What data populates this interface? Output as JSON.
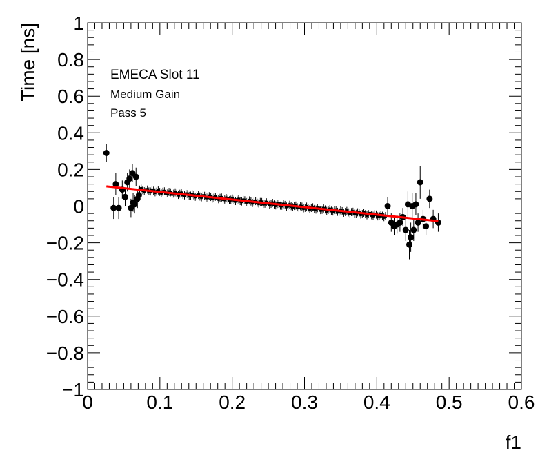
{
  "chart_data": {
    "type": "scatter",
    "title": "",
    "xlabel": "f1",
    "ylabel": "Time [ns]",
    "xlim": [
      0,
      0.6
    ],
    "ylim": [
      -1,
      1
    ],
    "xticks": [
      "0",
      "0.1",
      "0.2",
      "0.3",
      "0.4",
      "0.5",
      "0.6"
    ],
    "yticks": [
      "−1",
      "−0.8",
      "−0.6",
      "−0.4",
      "−0.2",
      "0",
      "0.2",
      "0.4",
      "0.6",
      "0.8",
      "1"
    ],
    "grid": false,
    "annotations": [
      "EMECA Slot 11",
      "Medium Gain",
      "Pass 5"
    ],
    "colors": {
      "points": "#000000",
      "fit": "#ff0000"
    },
    "fit_line": {
      "x": [
        0.026,
        0.485
      ],
      "y": [
        0.108,
        -0.082
      ]
    },
    "series": [
      {
        "x": [
          0.026,
          0.036,
          0.039,
          0.043,
          0.048,
          0.052,
          0.055,
          0.058,
          0.06,
          0.062,
          0.063,
          0.065,
          0.067,
          0.069,
          0.071
        ],
        "y": [
          0.29,
          -0.01,
          0.12,
          -0.01,
          0.09,
          0.05,
          0.13,
          0.15,
          -0.01,
          0.18,
          0.02,
          0.01,
          0.16,
          0.04,
          0.06
        ],
        "yerr": [
          0.05,
          0.06,
          0.06,
          0.06,
          0.05,
          0.05,
          0.05,
          0.05,
          0.05,
          0.05,
          0.05,
          0.05,
          0.05,
          0.05,
          0.05
        ]
      },
      {
        "x": [
          0.415,
          0.42,
          0.424,
          0.428,
          0.432,
          0.436,
          0.44,
          0.443,
          0.445,
          0.447,
          0.449,
          0.451,
          0.454,
          0.457,
          0.46,
          0.464,
          0.468,
          0.473,
          0.478,
          0.485
        ],
        "y": [
          0.0,
          -0.09,
          -0.11,
          -0.1,
          -0.09,
          -0.06,
          -0.13,
          0.01,
          -0.21,
          -0.17,
          0.0,
          -0.13,
          0.01,
          -0.09,
          0.13,
          -0.07,
          -0.11,
          0.04,
          -0.07,
          -0.09
        ],
        "yerr": [
          0.05,
          0.05,
          0.05,
          0.05,
          0.05,
          0.05,
          0.06,
          0.07,
          0.08,
          0.08,
          0.07,
          0.06,
          0.06,
          0.05,
          0.09,
          0.05,
          0.05,
          0.05,
          0.05,
          0.05
        ]
      }
    ],
    "dense_band": {
      "x_start": 0.072,
      "x_end": 0.412,
      "count": 160,
      "y_start": 0.09,
      "y_end": -0.055,
      "yerr": 0.022
    }
  }
}
